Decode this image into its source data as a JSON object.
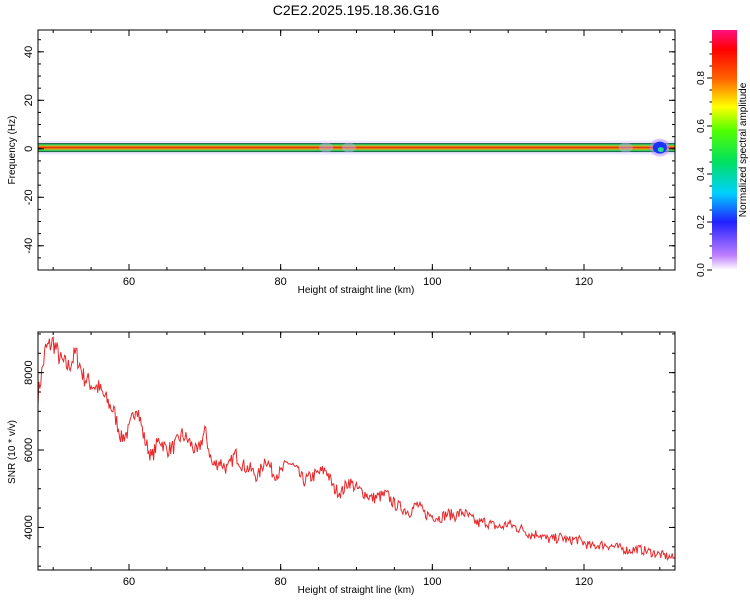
{
  "title": "C2E2.2025.195.18.36.G16",
  "colors": {
    "snr_line": "#e8282a",
    "spectrum_core": "#cc1a1a"
  },
  "chart_data": [
    {
      "type": "heatmap",
      "title": "C2E2.2025.195.18.36.G16",
      "xlabel": "Height of straight line (km)",
      "ylabel": "Frequency (Hz)",
      "xlim": [
        48,
        132
      ],
      "ylim": [
        -50,
        49
      ],
      "xticks": [
        60,
        80,
        100,
        120
      ],
      "yticks": [
        40,
        20,
        0,
        -20,
        -40
      ],
      "band_center_hz": 0.5,
      "end_blob_km": 130,
      "colorbar": {
        "label": "Normalized spectral amplitude",
        "range": [
          0.0,
          1.0
        ],
        "ticks": [
          0.0,
          0.2,
          0.4,
          0.6,
          0.8
        ]
      }
    },
    {
      "type": "line",
      "xlabel": "Height of straight line (km)",
      "ylabel": "SNR (10 * v/v)",
      "xlim": [
        48,
        132
      ],
      "ylim": [
        2900,
        9050
      ],
      "xticks": [
        60,
        80,
        100,
        120
      ],
      "yticks": [
        8000,
        6000,
        4000
      ],
      "series": [
        {
          "x": [
            48,
            49,
            50,
            51,
            52,
            53,
            54,
            55,
            56,
            57,
            58,
            59,
            60,
            61,
            62,
            63,
            64,
            65,
            66,
            67,
            68,
            69,
            70,
            71,
            72,
            73,
            74,
            75,
            76,
            77,
            78,
            79,
            80,
            81,
            82,
            83,
            84,
            85,
            86,
            87,
            88,
            89,
            90,
            91,
            92,
            93,
            94,
            95,
            96,
            97,
            98,
            99,
            100,
            101,
            102,
            103,
            104,
            105,
            106,
            107,
            108,
            109,
            110,
            111,
            112,
            113,
            114,
            115,
            116,
            117,
            118,
            119,
            120,
            121,
            122,
            123,
            124,
            125,
            126,
            127,
            128,
            129,
            130,
            131,
            132
          ],
          "y": [
            7400,
            8600,
            8800,
            8300,
            8150,
            8500,
            7900,
            7700,
            7600,
            7300,
            7000,
            6300,
            6500,
            7200,
            6300,
            5800,
            6300,
            6000,
            6100,
            6400,
            6200,
            5900,
            6500,
            5600,
            5700,
            5500,
            5900,
            5600,
            5500,
            5300,
            5800,
            5400,
            5400,
            5700,
            5500,
            5200,
            5300,
            5400,
            5500,
            5000,
            4900,
            5200,
            5000,
            4900,
            4750,
            4800,
            4850,
            4600,
            4500,
            4400,
            4600,
            4350,
            4300,
            4250,
            4350,
            4300,
            4400,
            4250,
            4100,
            4150,
            4050,
            4000,
            4100,
            4000,
            3950,
            3800,
            3850,
            3700,
            3700,
            3750,
            3650,
            3700,
            3600,
            3500,
            3550,
            3550,
            3500,
            3450,
            3400,
            3450,
            3400,
            3350,
            3300,
            3250,
            3200
          ]
        }
      ]
    }
  ]
}
